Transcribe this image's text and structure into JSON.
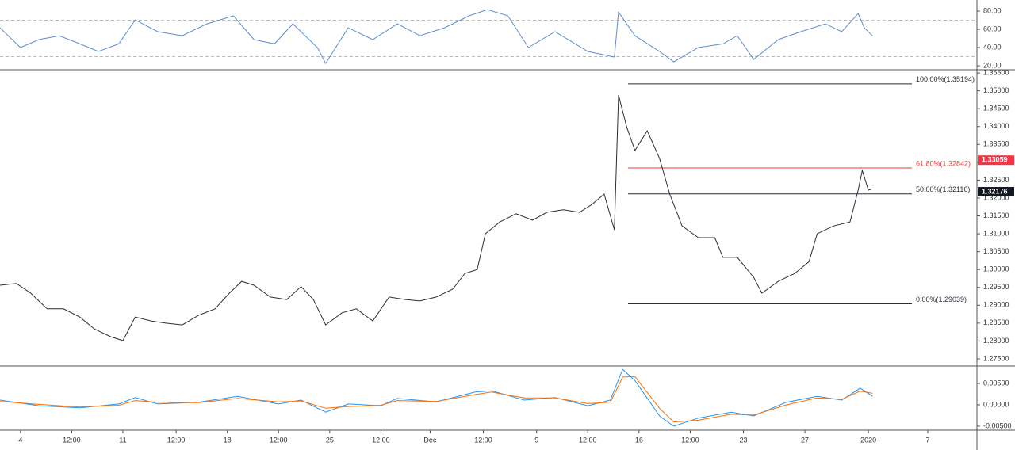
{
  "chart_data": [
    {
      "type": "line",
      "name": "rsi",
      "xlim": [
        -1,
        46.7
      ],
      "ylim": [
        15.7,
        92.2
      ],
      "yticks": [
        {
          "value": 20,
          "label": "20.00"
        },
        {
          "value": 40,
          "label": "40.00"
        },
        {
          "value": 60,
          "label": "60.00"
        },
        {
          "value": 80,
          "label": "80.00"
        }
      ],
      "levels": [
        70,
        30
      ],
      "grid": false,
      "x": [
        -1.0,
        0.0,
        0.9,
        1.9,
        2.9,
        3.8,
        4.8,
        5.6,
        6.7,
        7.9,
        9.1,
        10.4,
        11.4,
        12.4,
        13.3,
        14.5,
        14.9,
        16.0,
        17.2,
        18.4,
        19.5,
        20.7,
        21.9,
        22.8,
        23.8,
        24.8,
        26.1,
        27.7,
        29.0,
        29.2,
        30.0,
        31.2,
        31.9,
        33.1,
        34.3,
        35.0,
        35.8,
        37.0,
        38.1,
        39.3,
        40.1,
        40.9,
        41.2,
        41.6
      ],
      "series": [
        {
          "color": "#5b8fd1",
          "values": [
            61.7,
            40,
            48.7,
            53,
            44,
            35.7,
            44,
            70.4,
            57.4,
            53,
            66,
            74.8,
            48.7,
            44,
            66,
            40,
            22.6,
            61.7,
            48.7,
            66,
            53,
            61.7,
            74.8,
            81.7,
            74.8,
            40,
            57.4,
            35.7,
            29.6,
            79,
            53,
            35.7,
            24.3,
            40,
            44,
            53,
            27,
            48.7,
            57.4,
            66,
            57.4,
            77.4,
            61.7,
            53
          ]
        }
      ]
    },
    {
      "type": "line",
      "name": "price",
      "xlim": [
        -1,
        46.7
      ],
      "ylim": [
        1.273,
        1.3559
      ],
      "grid": false,
      "yticks": [
        {
          "value": 1.275,
          "label": "1.27500"
        },
        {
          "value": 1.28,
          "label": "1.28000"
        },
        {
          "value": 1.285,
          "label": "1.28500"
        },
        {
          "value": 1.29,
          "label": "1.29000"
        },
        {
          "value": 1.295,
          "label": "1.29500"
        },
        {
          "value": 1.3,
          "label": "1.30000"
        },
        {
          "value": 1.305,
          "label": "1.30500"
        },
        {
          "value": 1.31,
          "label": "1.31000"
        },
        {
          "value": 1.315,
          "label": "1.31500"
        },
        {
          "value": 1.32,
          "label": "1.32000"
        },
        {
          "value": 1.325,
          "label": "1.32500"
        },
        {
          "value": 1.33,
          "label": "1.33000"
        },
        {
          "value": 1.335,
          "label": "1.33500"
        },
        {
          "value": 1.34,
          "label": "1.34000"
        },
        {
          "value": 1.345,
          "label": "1.34500"
        },
        {
          "value": 1.35,
          "label": "1.35000"
        },
        {
          "value": 1.355,
          "label": "1.35500"
        }
      ],
      "xticks": [
        {
          "value": 0,
          "label": "4"
        },
        {
          "value": 2.5,
          "label": "12:00"
        },
        {
          "value": 5,
          "label": "11"
        },
        {
          "value": 7.6,
          "label": "12:00"
        },
        {
          "value": 10.1,
          "label": "18"
        },
        {
          "value": 12.6,
          "label": "12:00"
        },
        {
          "value": 15.1,
          "label": "25"
        },
        {
          "value": 17.6,
          "label": "12:00"
        },
        {
          "value": 20,
          "label": "Dec"
        },
        {
          "value": 22.6,
          "label": "12:00"
        },
        {
          "value": 25.2,
          "label": "9"
        },
        {
          "value": 27.7,
          "label": "12:00"
        },
        {
          "value": 30.2,
          "label": "16"
        },
        {
          "value": 32.7,
          "label": "12:00"
        },
        {
          "value": 35.3,
          "label": "23"
        },
        {
          "value": 38.3,
          "label": "27"
        },
        {
          "value": 41.4,
          "label": "2020"
        },
        {
          "value": 44.3,
          "label": "7"
        }
      ],
      "x": [
        -1.0,
        -0.2,
        0.5,
        1.3,
        2.1,
        2.9,
        3.6,
        4.4,
        5.0,
        5.6,
        6.4,
        7.1,
        7.9,
        8.7,
        9.5,
        10.2,
        10.8,
        11.4,
        12.2,
        13.0,
        13.7,
        14.3,
        14.9,
        15.7,
        16.4,
        17.2,
        18.0,
        18.8,
        19.5,
        20.3,
        21.1,
        21.7,
        22.3,
        22.7,
        23.4,
        24.2,
        25.0,
        25.7,
        26.5,
        27.3,
        27.9,
        28.5,
        29.0,
        29.2,
        29.6,
        30.0,
        30.6,
        31.2,
        31.7,
        32.3,
        33.1,
        33.9,
        34.3,
        35.0,
        35.8,
        36.2,
        37.0,
        37.8,
        38.5,
        38.9,
        39.7,
        40.5,
        40.9,
        41.1,
        41.4,
        41.6
      ],
      "series": [
        {
          "color": "#2a2e39",
          "values": [
            1.2956,
            1.2961,
            1.2934,
            1.289,
            1.289,
            1.2867,
            1.2834,
            1.2812,
            1.2801,
            1.2867,
            1.2856,
            1.285,
            1.2845,
            1.2872,
            1.289,
            1.2934,
            1.2967,
            1.2956,
            1.2923,
            1.2916,
            1.2952,
            1.2916,
            1.2845,
            1.2879,
            1.289,
            1.2856,
            1.2923,
            1.2916,
            1.2912,
            1.2923,
            1.2945,
            1.2989,
            1.3,
            1.31,
            1.3133,
            1.3156,
            1.3138,
            1.316,
            1.3167,
            1.316,
            1.3182,
            1.3211,
            1.3111,
            1.3488,
            1.3399,
            1.3333,
            1.3388,
            1.3311,
            1.3211,
            1.3122,
            1.3089,
            1.3089,
            1.3034,
            1.3034,
            1.2978,
            1.2934,
            1.2967,
            1.2989,
            1.3022,
            1.31,
            1.3122,
            1.3133,
            1.3222,
            1.3277,
            1.3222,
            1.3226
          ]
        }
      ],
      "fib": [
        {
          "value": 1.35194,
          "label": "100.00%(1.35194)",
          "color": "#2a2e39"
        },
        {
          "value": 1.32842,
          "label": "61.80%(1.32842)",
          "color": "#e0413a"
        },
        {
          "value": 1.32116,
          "label": "50.00%(1.32116)",
          "color": "#2a2e39"
        },
        {
          "value": 1.29039,
          "label": "0.00%(1.29039)",
          "color": "#2a2e39"
        }
      ],
      "price_tags": [
        {
          "value": 1.33059,
          "label": "1.33059",
          "color": "#f23645"
        },
        {
          "value": 1.32176,
          "label": "1.32176",
          "color": "#131722"
        }
      ]
    },
    {
      "type": "line",
      "name": "macd",
      "xlim": [
        -1,
        46.7
      ],
      "ylim": [
        -0.00593,
        0.00907
      ],
      "grid": false,
      "yticks": [
        {
          "value": -0.005,
          "label": "-0.00500"
        },
        {
          "value": 0,
          "label": "0.00000"
        },
        {
          "value": 0.005,
          "label": "0.00500"
        }
      ],
      "x": [
        -1.0,
        0.9,
        2.9,
        4.8,
        5.6,
        6.7,
        8.7,
        10.6,
        12.6,
        13.7,
        14.9,
        16.0,
        17.6,
        18.4,
        20.3,
        22.2,
        23.0,
        24.6,
        26.1,
        27.7,
        28.8,
        29.4,
        30.0,
        31.2,
        31.9,
        33.1,
        34.7,
        35.8,
        37.4,
        38.9,
        40.1,
        41.0,
        41.6
      ],
      "series": [
        {
          "color": "#2196f3",
          "values": [
            0.0011,
            -0.0002,
            -0.0007,
            0.0002,
            0.0017,
            0.0002,
            0.0006,
            0.002,
            0.0002,
            0.0011,
            -0.0017,
            0.0002,
            -0.0002,
            0.0015,
            0.0007,
            0.003,
            0.0033,
            0.0011,
            0.0017,
            -0.0002,
            0.0011,
            0.0083,
            0.0057,
            -0.0026,
            -0.005,
            -0.0031,
            -0.0017,
            -0.0026,
            0.0006,
            0.002,
            0.0011,
            0.0039,
            0.002
          ]
        },
        {
          "color": "#ff6d00",
          "values": [
            0.0008,
            0.0001,
            -0.0005,
            -0.0001,
            0.001,
            0.0006,
            0.0005,
            0.0015,
            0.0007,
            0.0009,
            -0.0008,
            -0.0004,
            -0.0001,
            0.001,
            0.0008,
            0.0024,
            0.003,
            0.0016,
            0.0016,
            0.0003,
            0.0006,
            0.0065,
            0.0066,
            -0.0008,
            -0.004,
            -0.0036,
            -0.0022,
            -0.0024,
            0.0,
            0.0016,
            0.0013,
            0.0032,
            0.0027
          ]
        }
      ]
    }
  ]
}
